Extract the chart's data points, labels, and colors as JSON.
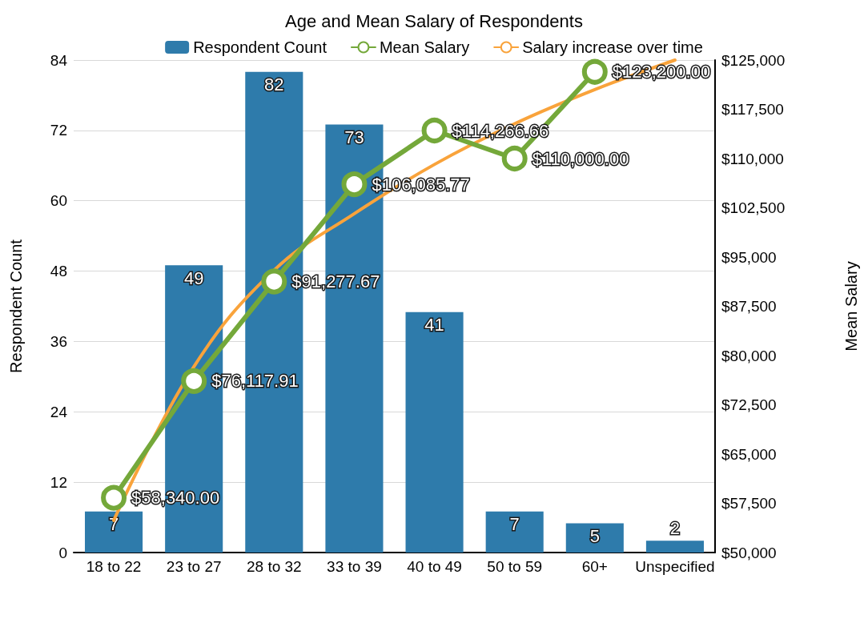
{
  "chart_data": {
    "type": "bar",
    "title": "Age and Mean Salary of Respondents",
    "ylabel": "Respondent Count",
    "y2label": "Mean Salary",
    "categories": [
      "18 to 22",
      "23 to 27",
      "28 to 32",
      "33 to 39",
      "40 to 49",
      "50 to 59",
      "60+",
      "Unspecified"
    ],
    "series": [
      {
        "name": "Respondent Count",
        "color": "#2e7bab",
        "values": [
          7,
          49,
          82,
          73,
          41,
          7,
          5,
          2
        ],
        "data_labels": true
      },
      {
        "name": "Mean Salary",
        "type": "line",
        "axis": "y2",
        "color": "#74a83a",
        "marker": "circle",
        "values": [
          58340.0,
          76117.91,
          91277.67,
          106085.77,
          114266.66,
          110000.0,
          123200.0,
          null
        ],
        "value_labels": [
          "$58,340.00",
          "$76,117.91",
          "$91,277.67",
          "$106,085.77",
          "$114,266.66",
          "$110,000.00",
          "$123,200.00",
          null
        ]
      },
      {
        "name": "Salary increase over time",
        "type": "line",
        "axis": "y2",
        "color": "#f9a33b",
        "marker": "none",
        "values": [
          54900,
          78300,
          93000,
          101600,
          109100,
          115300,
          120500,
          125000
        ]
      }
    ],
    "ylim": [
      0,
      84
    ],
    "yticks": [
      0,
      12,
      24,
      36,
      48,
      60,
      72,
      84
    ],
    "y2lim": [
      50000,
      125000
    ],
    "y2ticks": [
      {
        "value": 50000,
        "label": "$50,000"
      },
      {
        "value": 57500,
        "label": "$57,500"
      },
      {
        "value": 65000,
        "label": "$65,000"
      },
      {
        "value": 72500,
        "label": "$72,500"
      },
      {
        "value": 80000,
        "label": "$80,000"
      },
      {
        "value": 87500,
        "label": "$87,500"
      },
      {
        "value": 95000,
        "label": "$95,000"
      },
      {
        "value": 102500,
        "label": "$102,500"
      },
      {
        "value": 110000,
        "label": "$110,000"
      },
      {
        "value": 117500,
        "label": "$117,500"
      },
      {
        "value": 125000,
        "label": "$125,000"
      }
    ],
    "grid": "y",
    "legend": "top"
  }
}
